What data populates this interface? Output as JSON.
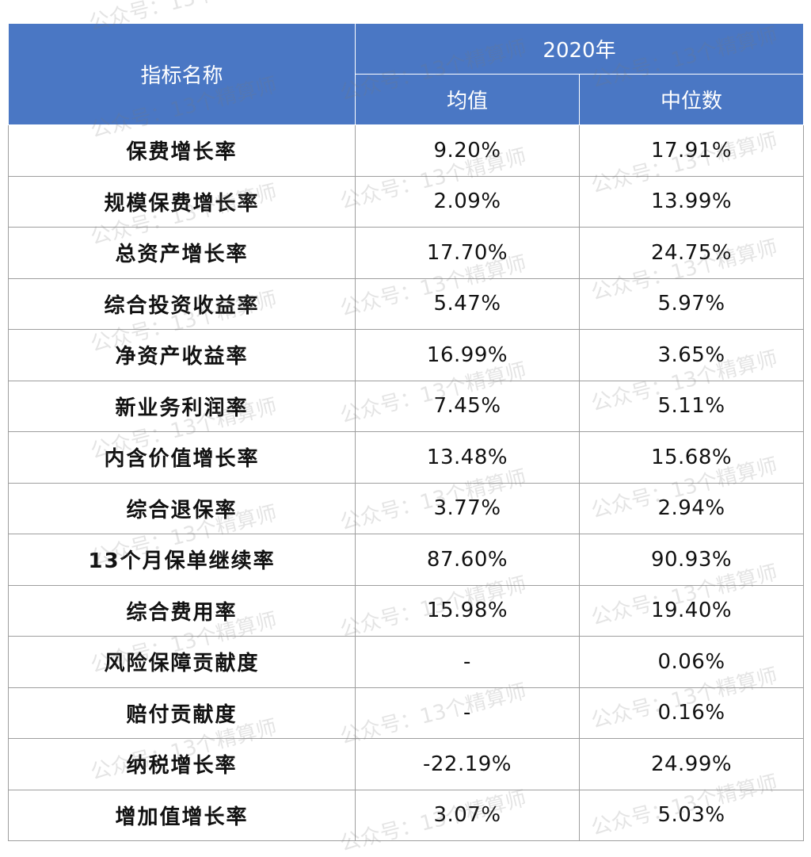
{
  "table": {
    "header": {
      "name_col": "指标名称",
      "year": "2020年",
      "mean": "均值",
      "median": "中位数"
    },
    "rows": [
      {
        "name": "保费增长率",
        "mean": "9.20%",
        "median": "17.91%"
      },
      {
        "name": "规模保费增长率",
        "mean": "2.09%",
        "median": "13.99%"
      },
      {
        "name": "总资产增长率",
        "mean": "17.70%",
        "median": "24.75%"
      },
      {
        "name": "综合投资收益率",
        "mean": "5.47%",
        "median": "5.97%"
      },
      {
        "name": "净资产收益率",
        "mean": "16.99%",
        "median": "3.65%"
      },
      {
        "name": "新业务利润率",
        "mean": "7.45%",
        "median": "5.11%"
      },
      {
        "name": "内含价值增长率",
        "mean": "13.48%",
        "median": "15.68%"
      },
      {
        "name": "综合退保率",
        "mean": "3.77%",
        "median": "2.94%"
      },
      {
        "name": "13个月保单继续率",
        "mean": "87.60%",
        "median": "90.93%"
      },
      {
        "name": "综合费用率",
        "mean": "15.98%",
        "median": "19.40%"
      },
      {
        "name": "风险保障贡献度",
        "mean": "-",
        "median": "0.06%"
      },
      {
        "name": "赔付贡献度",
        "mean": "-",
        "median": "0.16%"
      },
      {
        "name": "纳税增长率",
        "mean": "-22.19%",
        "median": "24.99%"
      },
      {
        "name": "增加值增长率",
        "mean": "3.07%",
        "median": "5.03%"
      }
    ]
  },
  "watermark": {
    "text": "公众号：13个精算师"
  },
  "colors": {
    "header_bg": "#4a77c4",
    "header_text": "#ffffff",
    "grid": "#9e9e9e"
  }
}
